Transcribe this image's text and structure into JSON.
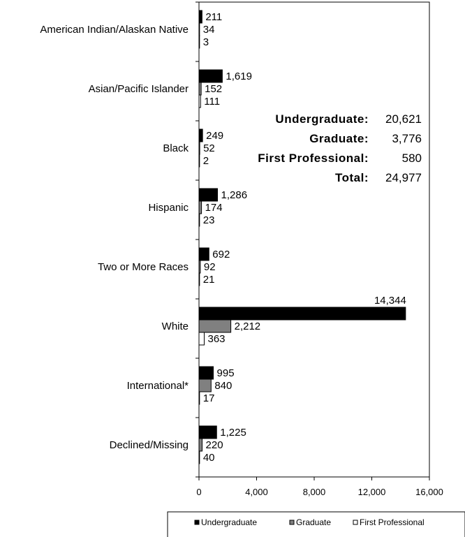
{
  "chart_data": {
    "type": "bar",
    "orientation": "horizontal",
    "categories": [
      "American Indian/Alaskan Native",
      "Asian/Pacific Islander",
      "Black",
      "Hispanic",
      "Two or More Races",
      "White",
      "International*",
      "Declined/Missing"
    ],
    "series": [
      {
        "name": "Undergraduate",
        "color": "#000000",
        "values": [
          211,
          1619,
          249,
          1286,
          692,
          14344,
          995,
          1225
        ],
        "labels": [
          "211",
          "1,619",
          "249",
          "1,286",
          "692",
          "14,344",
          "995",
          "1,225"
        ]
      },
      {
        "name": "Graduate",
        "color": "#808080",
        "values": [
          34,
          152,
          52,
          174,
          92,
          2212,
          840,
          220
        ],
        "labels": [
          "34",
          "152",
          "52",
          "174",
          "92",
          "2,212",
          "840",
          "220"
        ]
      },
      {
        "name": "First Professional",
        "color": "#ffffff",
        "values": [
          3,
          111,
          2,
          23,
          21,
          363,
          17,
          40
        ],
        "labels": [
          "3",
          "111",
          "2",
          "23",
          "21",
          "363",
          "17",
          "40"
        ]
      }
    ],
    "xlim": [
      0,
      16000
    ],
    "xticks": [
      0,
      4000,
      8000,
      12000,
      16000
    ],
    "xtick_labels": [
      "0",
      "4,000",
      "8,000",
      "12,000",
      "16,000"
    ],
    "grid": false,
    "legend_position": "bottom",
    "summary": [
      {
        "label": "Undergraduate:",
        "value": "20,621"
      },
      {
        "label": "Graduate:",
        "value": "3,776"
      },
      {
        "label": "First Professional:",
        "value": "580"
      },
      {
        "label": "Total:",
        "value": "24,977"
      }
    ]
  }
}
